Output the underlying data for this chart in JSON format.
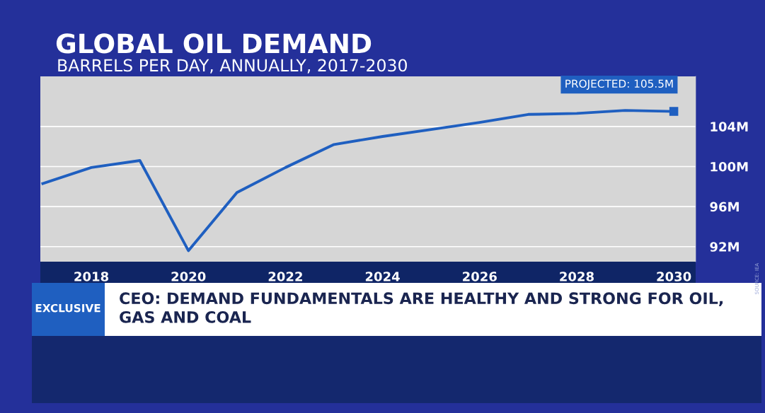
{
  "chart_data": {
    "type": "line",
    "title": "GLOBAL OIL DEMAND",
    "subtitle": "BARRELS PER DAY, ANNUALLY, 2017-2030",
    "x": [
      2017,
      2018,
      2019,
      2020,
      2021,
      2022,
      2023,
      2024,
      2025,
      2026,
      2027,
      2028,
      2029,
      2030
    ],
    "series": [
      {
        "color": "#1f5fc0",
        "values": [
          98.3,
          99.9,
          100.6,
          91.6,
          97.4,
          99.9,
          102.2,
          103.0,
          103.7,
          104.4,
          105.2,
          105.3,
          105.6,
          105.5
        ]
      }
    ],
    "xlim": [
      2016.95,
      2030.45
    ],
    "xticks": [
      2018,
      2020,
      2022,
      2024,
      2026,
      2028,
      2030
    ],
    "ylim": [
      90.5,
      109
    ],
    "yticks": [
      {
        "value": 92,
        "label": "92M"
      },
      {
        "value": 96,
        "label": "96M"
      },
      {
        "value": 100,
        "label": "100M"
      },
      {
        "value": 104,
        "label": "104M"
      }
    ],
    "grid": "y",
    "line_style": "solid",
    "annotations": [
      {
        "text": "PROJECTED: 105.5M",
        "x": 2030,
        "y": 105.5
      },
      "SOURCE: IEA",
      "EXCLUSIVE",
      "CEO: DEMAND FUNDAMENTALS ARE HEALTHY AND STRONG FOR OIL, GAS AND COAL"
    ]
  }
}
